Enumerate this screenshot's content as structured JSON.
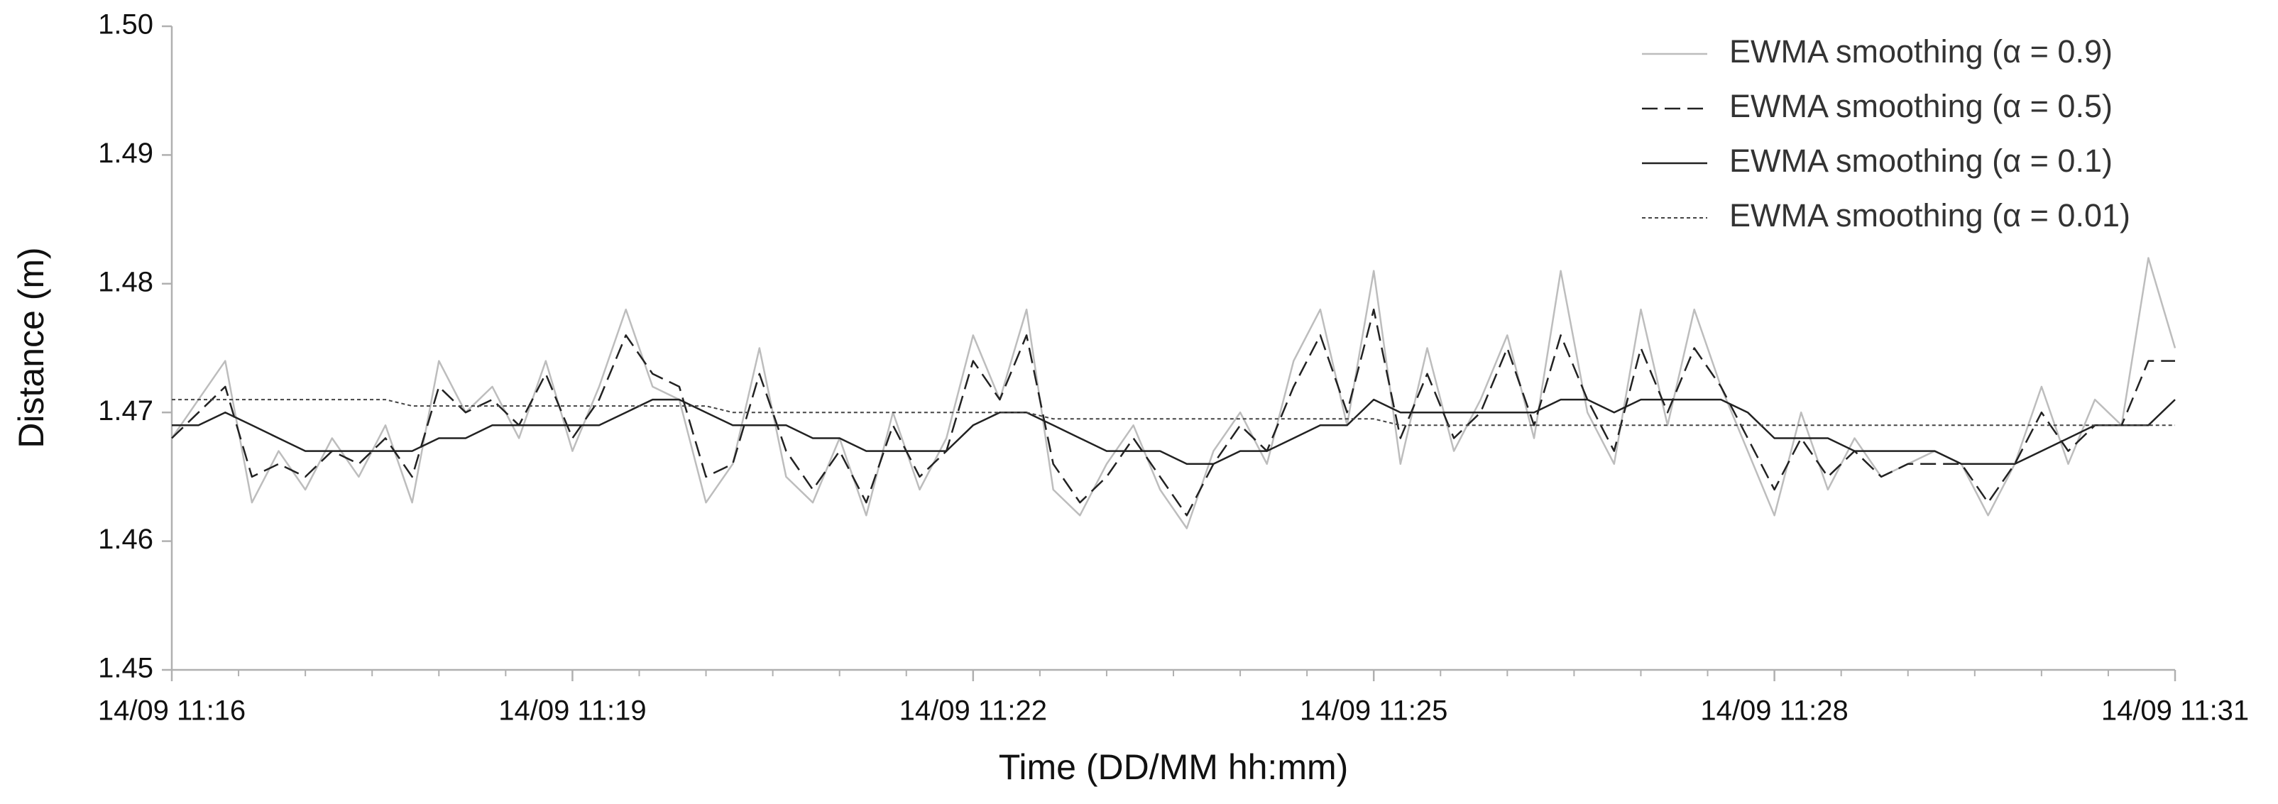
{
  "chart_data": {
    "type": "line",
    "xlabel": "Time (DD/MM hh:mm)",
    "ylabel": "Distance (m)",
    "x": [
      16,
      16.2,
      16.4,
      16.6,
      16.8,
      17,
      17.2,
      17.4,
      17.6,
      17.8,
      18,
      18.2,
      18.4,
      18.6,
      18.8,
      19,
      19.2,
      19.4,
      19.6,
      19.8,
      20,
      20.2,
      20.4,
      20.6,
      20.8,
      21,
      21.2,
      21.4,
      21.6,
      21.8,
      22,
      22.2,
      22.4,
      22.6,
      22.8,
      23,
      23.2,
      23.4,
      23.6,
      23.8,
      24,
      24.2,
      24.4,
      24.6,
      24.8,
      25,
      25.2,
      25.4,
      25.6,
      25.8,
      26,
      26.2,
      26.4,
      26.6,
      26.8,
      27,
      27.2,
      27.4,
      27.6,
      27.8,
      28,
      28.2,
      28.4,
      28.6,
      28.8,
      29,
      29.2,
      29.4,
      29.6,
      29.8,
      30,
      30.2,
      30.4,
      30.6,
      30.8,
      31
    ],
    "xlim": [
      16,
      31
    ],
    "xticks": [
      {
        "value": 16,
        "label": "14/09 11:16"
      },
      {
        "value": 19,
        "label": "14/09 11:19"
      },
      {
        "value": 22,
        "label": "14/09 11:22"
      },
      {
        "value": 25,
        "label": "14/09 11:25"
      },
      {
        "value": 28,
        "label": "14/09 11:28"
      },
      {
        "value": 31,
        "label": "14/09 11:31"
      }
    ],
    "ylim": [
      1.45,
      1.5
    ],
    "yticks": [
      1.45,
      1.46,
      1.47,
      1.48,
      1.49,
      {
        "value": 1.5,
        "label": "1.50"
      }
    ],
    "legend": "upper right",
    "series": [
      {
        "name": "EWMA smoothing (α = 0.9)",
        "color": "#bdbdbd",
        "linestyle": "solid",
        "linewidth": 2.5,
        "values": [
          1.468,
          1.471,
          1.474,
          1.463,
          1.467,
          1.464,
          1.468,
          1.465,
          1.469,
          1.463,
          1.474,
          1.47,
          1.472,
          1.468,
          1.474,
          1.467,
          1.472,
          1.478,
          1.472,
          1.471,
          1.463,
          1.466,
          1.475,
          1.465,
          1.463,
          1.468,
          1.462,
          1.47,
          1.464,
          1.468,
          1.476,
          1.471,
          1.478,
          1.464,
          1.462,
          1.466,
          1.469,
          1.464,
          1.461,
          1.467,
          1.47,
          1.466,
          1.474,
          1.478,
          1.469,
          1.481,
          1.466,
          1.475,
          1.467,
          1.471,
          1.476,
          1.468,
          1.481,
          1.47,
          1.466,
          1.478,
          1.469,
          1.478,
          1.472,
          1.467,
          1.462,
          1.47,
          1.464,
          1.468,
          1.465,
          1.466,
          1.467,
          1.466,
          1.462,
          1.466,
          1.472,
          1.466,
          1.471,
          1.469,
          1.482,
          1.475
        ]
      },
      {
        "name": "EWMA smoothing (α = 0.5)",
        "color": "#222222",
        "linestyle": "dashed",
        "linewidth": 2.5,
        "values": [
          1.468,
          1.47,
          1.472,
          1.465,
          1.466,
          1.465,
          1.467,
          1.466,
          1.468,
          1.465,
          1.472,
          1.47,
          1.471,
          1.469,
          1.473,
          1.468,
          1.471,
          1.476,
          1.473,
          1.472,
          1.465,
          1.466,
          1.473,
          1.467,
          1.464,
          1.467,
          1.463,
          1.469,
          1.465,
          1.467,
          1.474,
          1.471,
          1.476,
          1.466,
          1.463,
          1.465,
          1.468,
          1.465,
          1.462,
          1.466,
          1.469,
          1.467,
          1.472,
          1.476,
          1.47,
          1.478,
          1.468,
          1.473,
          1.468,
          1.47,
          1.475,
          1.469,
          1.476,
          1.471,
          1.467,
          1.475,
          1.47,
          1.475,
          1.472,
          1.468,
          1.464,
          1.468,
          1.465,
          1.467,
          1.465,
          1.466,
          1.466,
          1.466,
          1.463,
          1.466,
          1.47,
          1.467,
          1.469,
          1.469,
          1.474,
          1.474
        ]
      },
      {
        "name": "EWMA smoothing (α = 0.1)",
        "color": "#222222",
        "linestyle": "solid",
        "linewidth": 2.5,
        "values": [
          1.469,
          1.469,
          1.47,
          1.469,
          1.468,
          1.467,
          1.467,
          1.467,
          1.467,
          1.467,
          1.468,
          1.468,
          1.469,
          1.469,
          1.469,
          1.469,
          1.469,
          1.47,
          1.471,
          1.471,
          1.47,
          1.469,
          1.469,
          1.469,
          1.468,
          1.468,
          1.467,
          1.467,
          1.467,
          1.467,
          1.469,
          1.47,
          1.47,
          1.469,
          1.468,
          1.467,
          1.467,
          1.467,
          1.466,
          1.466,
          1.467,
          1.467,
          1.468,
          1.469,
          1.469,
          1.471,
          1.47,
          1.47,
          1.47,
          1.47,
          1.47,
          1.47,
          1.471,
          1.471,
          1.47,
          1.471,
          1.471,
          1.471,
          1.471,
          1.47,
          1.468,
          1.468,
          1.468,
          1.467,
          1.467,
          1.467,
          1.467,
          1.466,
          1.466,
          1.466,
          1.467,
          1.468,
          1.469,
          1.469,
          1.469,
          1.471
        ]
      },
      {
        "name": "EWMA smoothing (α = 0.01)",
        "color": "#444444",
        "linestyle": "dotted",
        "linewidth": 2,
        "values": [
          1.471,
          1.471,
          1.471,
          1.471,
          1.471,
          1.471,
          1.471,
          1.471,
          1.471,
          1.4705,
          1.4705,
          1.4705,
          1.4705,
          1.4705,
          1.4705,
          1.4705,
          1.4705,
          1.4705,
          1.4705,
          1.4705,
          1.4705,
          1.47,
          1.47,
          1.47,
          1.47,
          1.47,
          1.47,
          1.47,
          1.47,
          1.47,
          1.47,
          1.47,
          1.47,
          1.4695,
          1.4695,
          1.4695,
          1.4695,
          1.4695,
          1.4695,
          1.4695,
          1.4695,
          1.4695,
          1.4695,
          1.4695,
          1.4695,
          1.4695,
          1.469,
          1.469,
          1.469,
          1.469,
          1.469,
          1.469,
          1.469,
          1.469,
          1.469,
          1.469,
          1.469,
          1.469,
          1.469,
          1.469,
          1.469,
          1.469,
          1.469,
          1.469,
          1.469,
          1.469,
          1.469,
          1.469,
          1.469,
          1.469,
          1.469,
          1.469,
          1.469,
          1.469,
          1.469,
          1.469
        ]
      }
    ]
  }
}
